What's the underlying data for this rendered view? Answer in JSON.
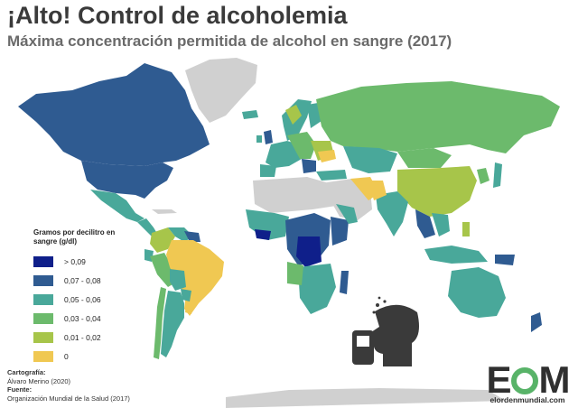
{
  "title": "¡Alto! Control de alcoholemia",
  "subtitle": "Máxima concentración permitida de alcohol en sangre (2017)",
  "legend": {
    "title": "Gramos por decilitro en sangre (g/dl)",
    "items": [
      {
        "label": "> 0,09",
        "color": "#0f1f8a"
      },
      {
        "label": "0,07 - 0,08",
        "color": "#2f5b91"
      },
      {
        "label": "0,05 - 0,06",
        "color": "#49a89a"
      },
      {
        "label": "0,03 - 0,04",
        "color": "#6cba6c"
      },
      {
        "label": "0,01 - 0,02",
        "color": "#a7c54a"
      },
      {
        "label": "0",
        "color": "#f0c852"
      }
    ]
  },
  "credits": {
    "cartography_label": "Cartografía:",
    "cartography_value": "Álvaro Merino (2020)",
    "source_label": "Fuente:",
    "source_value": "Organización Mundial de la Salud (2017)"
  },
  "logo": {
    "mark": "EOM",
    "site": "elordenmundial.com"
  },
  "colors": {
    "no_data": "#d0d0d0",
    "ocean": "#ffffff",
    "icon": "#3a3a3a"
  }
}
